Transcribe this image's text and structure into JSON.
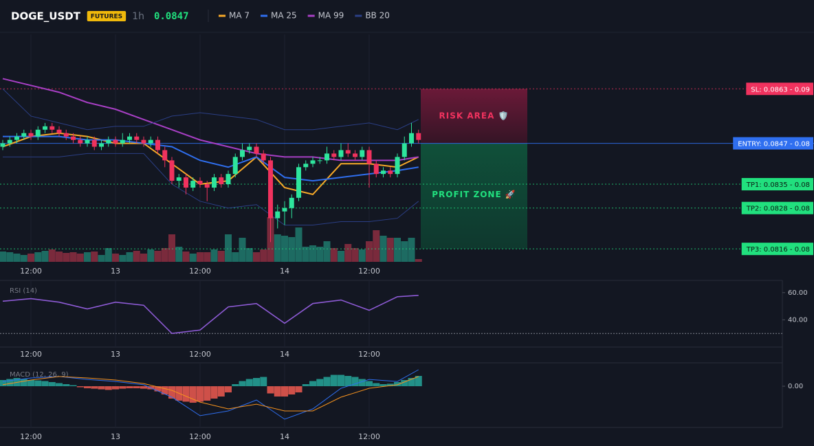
{
  "header": {
    "symbol": "DOGE_USDT",
    "badge": "FUTURES",
    "interval": "1h",
    "price": "0.0847"
  },
  "chart_data": [
    {
      "type": "candlestick",
      "categories": [
        null,
        null,
        null,
        null,
        "12:00",
        null,
        null,
        null,
        null,
        null,
        null,
        null,
        null,
        null,
        null,
        null,
        "13",
        null,
        null,
        null,
        null,
        null,
        null,
        null,
        null,
        null,
        null,
        null,
        "12:00",
        null,
        null,
        null,
        null,
        null,
        null,
        null,
        null,
        null,
        null,
        null,
        "14",
        null,
        null,
        null,
        null,
        null,
        null,
        null,
        null,
        null,
        null,
        null,
        "12:00",
        null,
        null,
        null,
        null,
        null,
        null,
        null
      ],
      "open": [
        0.0846,
        0.0847,
        0.0848,
        0.0849,
        0.085,
        0.0849,
        0.0851,
        0.0852,
        0.0851,
        0.085,
        0.0849,
        0.0848,
        0.0847,
        0.0848,
        0.0846,
        0.0847,
        0.0848,
        0.0847,
        0.0848,
        0.0849,
        0.0848,
        0.0847,
        0.0848,
        0.0845,
        0.0842,
        0.0836,
        0.0837,
        0.0834,
        0.0836,
        0.0835,
        0.0834,
        0.0837,
        0.0835,
        0.0838,
        0.0843,
        0.0845,
        0.0846,
        0.0844,
        0.0842,
        0.0825,
        0.0827,
        0.0828,
        0.0831,
        0.084,
        0.0841,
        0.0842,
        0.0842,
        0.0844,
        0.0843,
        0.0845,
        0.0844,
        0.0843,
        0.0845,
        0.0841,
        0.0838,
        0.0839,
        0.0838,
        0.0843,
        0.0847,
        0.085
      ],
      "high": [
        0.0848,
        0.0849,
        0.085,
        0.0851,
        0.0851,
        0.0852,
        0.0853,
        0.0853,
        0.0852,
        0.0851,
        0.085,
        0.0849,
        0.0849,
        0.0849,
        0.0848,
        0.0849,
        0.0849,
        0.085,
        0.085,
        0.085,
        0.0849,
        0.0849,
        0.0849,
        0.0846,
        0.0843,
        0.0838,
        0.0838,
        0.0837,
        0.0837,
        0.0836,
        0.0838,
        0.0838,
        0.0839,
        0.0844,
        0.0847,
        0.0847,
        0.0847,
        0.0845,
        0.0843,
        0.0829,
        0.083,
        0.0832,
        0.0841,
        0.0842,
        0.0843,
        0.0843,
        0.0846,
        0.0845,
        0.0847,
        0.0847,
        0.0845,
        0.0846,
        0.0846,
        0.0842,
        0.084,
        0.084,
        0.0844,
        0.0849,
        0.0853,
        0.0851
      ],
      "low": [
        0.0845,
        0.0846,
        0.0847,
        0.0848,
        0.0848,
        0.0848,
        0.085,
        0.085,
        0.0849,
        0.0848,
        0.0847,
        0.0846,
        0.0846,
        0.0845,
        0.0845,
        0.0846,
        0.0846,
        0.0846,
        0.0847,
        0.0847,
        0.0846,
        0.0846,
        0.0844,
        0.084,
        0.0835,
        0.0834,
        0.0832,
        0.0833,
        0.0834,
        0.083,
        0.0833,
        0.0834,
        0.0834,
        0.0837,
        0.0842,
        0.0844,
        0.0843,
        0.0841,
        0.0818,
        0.0822,
        0.0823,
        0.0825,
        0.083,
        0.0839,
        0.084,
        0.0841,
        0.0841,
        0.0842,
        0.0842,
        0.0843,
        0.0842,
        0.0842,
        0.0834,
        0.0837,
        0.0837,
        0.0837,
        0.0837,
        0.0842,
        0.0846,
        0.0847
      ],
      "close": [
        0.0847,
        0.0848,
        0.0849,
        0.085,
        0.0849,
        0.0851,
        0.0852,
        0.0851,
        0.085,
        0.0849,
        0.0848,
        0.0847,
        0.0848,
        0.0846,
        0.0847,
        0.0848,
        0.0847,
        0.0848,
        0.0849,
        0.0848,
        0.0847,
        0.0848,
        0.0845,
        0.0842,
        0.0836,
        0.0837,
        0.0834,
        0.0836,
        0.0835,
        0.0834,
        0.0837,
        0.0835,
        0.0838,
        0.0843,
        0.0845,
        0.0846,
        0.0844,
        0.0842,
        0.0825,
        0.0827,
        0.0828,
        0.0831,
        0.084,
        0.0841,
        0.0842,
        0.0842,
        0.0844,
        0.0843,
        0.0845,
        0.0844,
        0.0843,
        0.0845,
        0.0841,
        0.0838,
        0.0839,
        0.0838,
        0.0843,
        0.0847,
        0.085,
        0.0848
      ],
      "up_color": "#2ee59d",
      "down_color": "#f0325e",
      "volume": [
        15,
        14,
        12,
        10,
        12,
        14,
        16,
        18,
        15,
        13,
        14,
        12,
        14,
        15,
        10,
        20,
        12,
        10,
        14,
        16,
        12,
        18,
        16,
        20,
        40,
        22,
        15,
        12,
        14,
        14,
        18,
        16,
        40,
        14,
        35,
        20,
        14,
        18,
        65,
        40,
        38,
        36,
        50,
        22,
        24,
        22,
        30,
        20,
        16,
        26,
        20,
        18,
        30,
        46,
        38,
        35,
        35,
        30,
        35,
        4
      ],
      "volume_up_color": "#1d6b62",
      "volume_down_color": "#7a2a3c",
      "ylim": [
        0.0812,
        0.0879
      ],
      "x": [
        0,
        4,
        8,
        12,
        16,
        20,
        24,
        28,
        32,
        36,
        40,
        44,
        48,
        52,
        56,
        59
      ],
      "series": [
        {
          "name": "MA 7",
          "color": "#f7a928",
          "values": [
            0.0846,
            0.0849,
            0.085,
            0.0849,
            0.0847,
            0.0847,
            0.0841,
            0.0835,
            0.0836,
            0.0843,
            0.0834,
            0.0832,
            0.0841,
            0.0841,
            0.084,
            0.0843
          ]
        },
        {
          "name": "MA 25",
          "color": "#2f6ff0",
          "values": [
            0.0849,
            0.0849,
            0.0849,
            0.0848,
            0.0848,
            0.0847,
            0.0846,
            0.0842,
            0.084,
            0.0843,
            0.0837,
            0.0836,
            0.0837,
            0.0838,
            0.0839,
            0.084
          ]
        },
        {
          "name": "MA 99",
          "color": "#a83fc5",
          "values": [
            0.0866,
            0.0864,
            0.0862,
            0.0859,
            0.0857,
            0.0854,
            0.0851,
            0.0848,
            0.0846,
            0.0844,
            0.0843,
            0.0843,
            0.0842,
            0.0842,
            0.0842,
            0.0843
          ]
        },
        {
          "name": "BB 20",
          "color": "#2b3f86",
          "values": [
            0.0863,
            0.0855,
            0.0853,
            0.0851,
            0.0852,
            0.0852,
            0.0855,
            0.0856,
            0.0855,
            0.0854,
            0.0851,
            0.0851,
            0.0852,
            0.0853,
            0.0851,
            0.0854
          ],
          "lower": [
            0.0843,
            0.0843,
            0.0843,
            0.0844,
            0.0844,
            0.0844,
            0.0835,
            0.083,
            0.0828,
            0.0829,
            0.0823,
            0.0823,
            0.0824,
            0.0824,
            0.0825,
            0.083
          ]
        }
      ],
      "levels": [
        {
          "value": 0.0863,
          "label": "SL: 0.0863 - 0.09",
          "color": "#f0325e",
          "text_color": "#ffffff"
        },
        {
          "value": 0.0847,
          "label": "ENTRY: 0.0847 - 0.08",
          "color": "#2f6ff0",
          "text_color": "#ffffff"
        },
        {
          "value": 0.0835,
          "label": "TP1: 0.0835 - 0.08",
          "color": "#21e07e",
          "text_color": "#0b1a12"
        },
        {
          "value": 0.0828,
          "label": "TP2: 0.0828 - 0.08",
          "color": "#21e07e",
          "text_color": "#0b1a12"
        },
        {
          "value": 0.0816,
          "label": "TP3: 0.0816 - 0.08",
          "color": "#21e07e",
          "text_color": "#0b1a12"
        }
      ],
      "risk_label": "RISK AREA 🛡️",
      "profit_label": "PROFIT ZONE 🚀"
    },
    {
      "type": "line",
      "title": "RSI (14)",
      "x": [
        0,
        4,
        8,
        12,
        16,
        20,
        24,
        28,
        32,
        36,
        40,
        44,
        48,
        52,
        56,
        59
      ],
      "series": [
        {
          "color": "#8e5bd6",
          "values": [
            53.7,
            55.6,
            53,
            48,
            53,
            50.7,
            30,
            32.5,
            49.5,
            52,
            37.5,
            52,
            54.6,
            47,
            57,
            58
          ]
        }
      ],
      "ylim": [
        20,
        68
      ],
      "yticks": [
        {
          "value": 60,
          "label": "60.00"
        },
        {
          "value": 40,
          "label": "40.00"
        }
      ],
      "reference_lines": [
        30
      ]
    },
    {
      "type": "macd",
      "title": "MACD (12, 26, 9)",
      "x": [
        0,
        4,
        8,
        12,
        16,
        20,
        24,
        28,
        32,
        36,
        40,
        44,
        48,
        52,
        56,
        59
      ],
      "series": [
        {
          "color": "#2f6ff0",
          "values": [
            0.23,
            0.4,
            0.47,
            0.33,
            0.23,
            0.07,
            -0.53,
            -1.43,
            -1.2,
            -0.67,
            -1.6,
            -1.1,
            -0.1,
            0.33,
            0.23,
            0.8
          ]
        },
        {
          "color": "#f7931e",
          "values": [
            0.07,
            0.3,
            0.47,
            0.4,
            0.3,
            0.13,
            -0.2,
            -0.77,
            -1.1,
            -0.87,
            -1.2,
            -1.2,
            -0.53,
            -0.1,
            0.07,
            0.47
          ]
        }
      ],
      "histogram": [
        0.3,
        0.35,
        0.4,
        0.35,
        0.3,
        0.28,
        0.25,
        0.2,
        0.15,
        0.1,
        0.05,
        -0.05,
        -0.1,
        -0.12,
        -0.15,
        -0.18,
        -0.15,
        -0.12,
        -0.1,
        -0.1,
        -0.12,
        -0.15,
        -0.25,
        -0.4,
        -0.6,
        -0.7,
        -0.75,
        -0.8,
        -0.75,
        -0.7,
        -0.6,
        -0.5,
        -0.3,
        0.1,
        0.25,
        0.35,
        0.4,
        0.45,
        -0.35,
        -0.5,
        -0.5,
        -0.4,
        -0.3,
        0.1,
        0.25,
        0.35,
        0.45,
        0.55,
        0.55,
        0.5,
        0.45,
        0.35,
        0.25,
        0.15,
        0.1,
        0.12,
        0.2,
        0.3,
        0.4,
        0.5
      ],
      "histogram_up_color": "#26a69a",
      "histogram_down_color": "#f05a50",
      "ylim": [
        -2,
        1
      ],
      "yticks": [
        {
          "value": 0,
          "label": "0.00"
        }
      ]
    }
  ]
}
